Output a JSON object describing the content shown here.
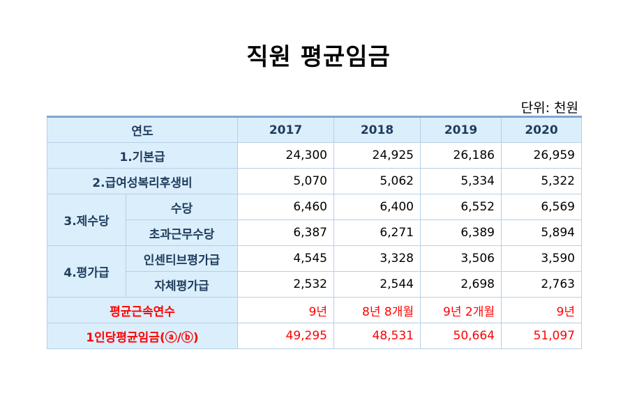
{
  "title": "직원 평균임금",
  "unit": "단위: 천원",
  "table": {
    "header": {
      "label": "연도",
      "years": [
        "2017",
        "2018",
        "2019",
        "2020"
      ]
    },
    "rows": [
      {
        "label": "1.기본급",
        "values": [
          "24,300",
          "24,925",
          "26,186",
          "26,959"
        ]
      },
      {
        "label": "2.급여성복리후생비",
        "values": [
          "5,070",
          "5,062",
          "5,334",
          "5,322"
        ]
      },
      {
        "group": "3.제수당",
        "label": "수당",
        "values": [
          "6,460",
          "6,400",
          "6,552",
          "6,569"
        ]
      },
      {
        "label": "초과근무수당",
        "values": [
          "6,387",
          "6,271",
          "6,389",
          "5,894"
        ]
      },
      {
        "group": "4.평가급",
        "label": "인센티브평가급",
        "values": [
          "4,545",
          "3,328",
          "3,506",
          "3,590"
        ]
      },
      {
        "label": "자체평가급",
        "values": [
          "2,532",
          "2,544",
          "2,698",
          "2,763"
        ]
      },
      {
        "label": "평균근속연수",
        "values": [
          "9년",
          "8년 8개월",
          "9년 2개월",
          "9년"
        ]
      },
      {
        "label": "1인당평균임금(ⓐ/ⓑ)",
        "values": [
          "49,295",
          "48,531",
          "50,664",
          "51,097"
        ]
      }
    ]
  },
  "colors": {
    "header_bg": "#dbeefc",
    "header_text": "#1f3d5c",
    "border": "#b6cfe6",
    "highlight": "#ff0000"
  }
}
